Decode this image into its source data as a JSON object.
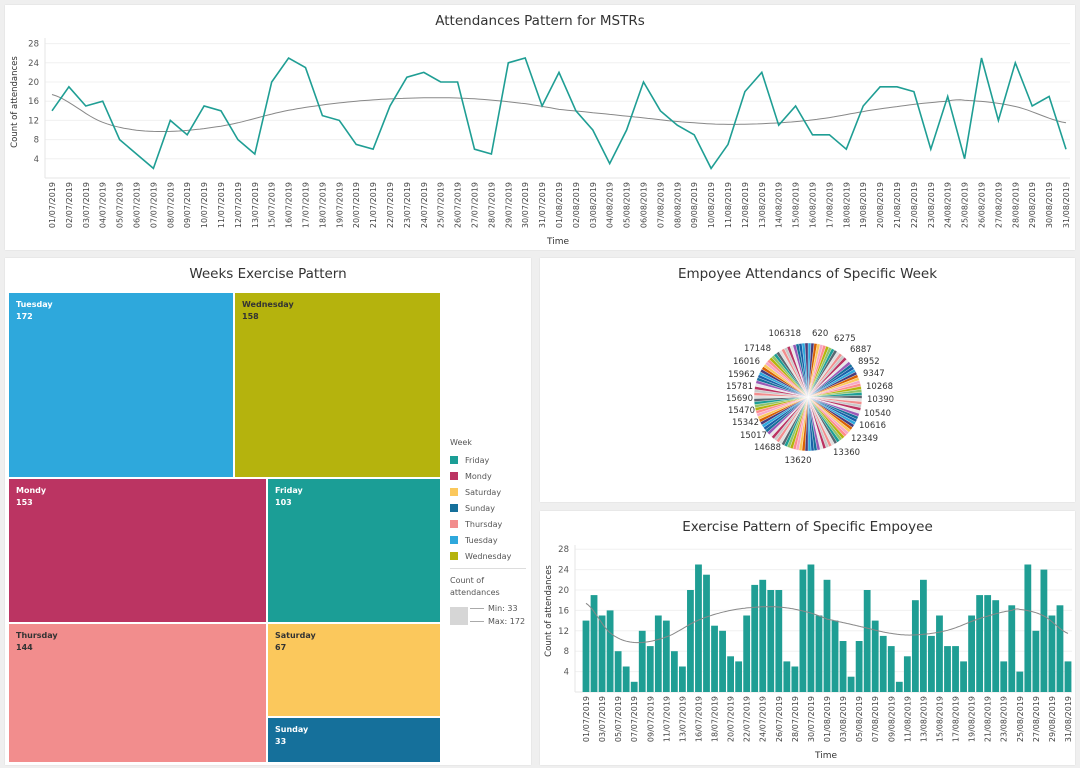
{
  "line_panel": {
    "title": "Attendances Pattern for MSTRs"
  },
  "treemap_panel": {
    "title": "Weeks Exercise Pattern"
  },
  "pie_panel": {
    "title": "Empoyee Attendancs of Specific Week"
  },
  "bar_panel": {
    "title": "Exercise Pattern of Specific Empoyee"
  },
  "chart_data": [
    {
      "type": "line",
      "title": "Attendances Pattern for MSTRs",
      "xlabel": "Time",
      "ylabel": "Count of attendances",
      "yticks": [
        4,
        8,
        12,
        16,
        20,
        24,
        28
      ],
      "ylim": [
        0,
        29
      ],
      "grid": true,
      "color": "#1f9e94",
      "trend_color": "#888888",
      "x": [
        "01/07/2019",
        "02/07/2019",
        "03/07/2019",
        "04/07/2019",
        "05/07/2019",
        "06/07/2019",
        "07/07/2019",
        "08/07/2019",
        "09/07/2019",
        "10/07/2019",
        "11/07/2019",
        "12/07/2019",
        "13/07/2019",
        "15/07/2019",
        "16/07/2019",
        "17/07/2019",
        "18/07/2019",
        "19/07/2019",
        "20/07/2019",
        "21/07/2019",
        "22/07/2019",
        "23/07/2019",
        "24/07/2019",
        "25/07/2019",
        "26/07/2019",
        "27/07/2019",
        "28/07/2019",
        "29/07/2019",
        "30/07/2019",
        "31/07/2019",
        "01/08/2019",
        "02/08/2019",
        "03/08/2019",
        "04/08/2019",
        "05/08/2019",
        "06/08/2019",
        "07/08/2019",
        "08/08/2019",
        "09/08/2019",
        "10/08/2019",
        "11/08/2019",
        "12/08/2019",
        "13/08/2019",
        "14/08/2019",
        "15/08/2019",
        "16/08/2019",
        "17/08/2019",
        "18/08/2019",
        "19/08/2019",
        "20/08/2019",
        "21/08/2019",
        "22/08/2019",
        "23/08/2019",
        "24/08/2019",
        "25/08/2019",
        "26/08/2019",
        "27/08/2019",
        "28/08/2019",
        "29/08/2019",
        "30/08/2019",
        "31/08/2019"
      ],
      "values": [
        14,
        19,
        15,
        16,
        8,
        5,
        2,
        12,
        9,
        15,
        14,
        8,
        5,
        20,
        25,
        23,
        13,
        12,
        7,
        6,
        15,
        21,
        22,
        20,
        20,
        6,
        5,
        24,
        25,
        15,
        22,
        14,
        10,
        3,
        10,
        20,
        14,
        11,
        9,
        2,
        7,
        18,
        22,
        11,
        15,
        9,
        9,
        6,
        15,
        19,
        19,
        18,
        6,
        17,
        4,
        25,
        12,
        24,
        15,
        17,
        6
      ],
      "trend": [
        {
          "x": "01/07/2019",
          "y": 17.4
        },
        {
          "x": "04/07/2019",
          "y": 11.6
        },
        {
          "x": "07/07/2019",
          "y": 9.7
        },
        {
          "x": "11/07/2019",
          "y": 10.8
        },
        {
          "x": "16/07/2019",
          "y": 14.1
        },
        {
          "x": "20/07/2019",
          "y": 16.0
        },
        {
          "x": "24/07/2019",
          "y": 16.7
        },
        {
          "x": "27/07/2019",
          "y": 16.5
        },
        {
          "x": "30/07/2019",
          "y": 15.5
        },
        {
          "x": "01/08/2019",
          "y": 14.3
        },
        {
          "x": "05/08/2019",
          "y": 12.9
        },
        {
          "x": "09/08/2019",
          "y": 11.5
        },
        {
          "x": "12/08/2019",
          "y": 11.2
        },
        {
          "x": "16/08/2019",
          "y": 12.1
        },
        {
          "x": "20/08/2019",
          "y": 14.4
        },
        {
          "x": "24/08/2019",
          "y": 16.0
        },
        {
          "x": "25/08/2019",
          "y": 16.2
        },
        {
          "x": "28/08/2019",
          "y": 14.9
        },
        {
          "x": "31/08/2019",
          "y": 11.5
        }
      ]
    },
    {
      "type": "treemap",
      "title": "Weeks Exercise Pattern",
      "legend_title": "Week",
      "size_legend_title": "Count of attendances",
      "size_min_label": "Min: 33",
      "size_max_label": "Max: 172",
      "legend_position": "right",
      "items": [
        {
          "label": "Tuesday",
          "value": 172,
          "color": "#2ea8dc"
        },
        {
          "label": "Wednesday",
          "value": 158,
          "color": "#b5b30d"
        },
        {
          "label": "Mondy",
          "value": 153,
          "color": "#bb3462"
        },
        {
          "label": "Friday",
          "value": 103,
          "color": "#1b9e96"
        },
        {
          "label": "Thursday",
          "value": 144,
          "color": "#f28d8d"
        },
        {
          "label": "Saturday",
          "value": 67,
          "color": "#fbc85c"
        },
        {
          "label": "Sunday",
          "value": 33,
          "color": "#15709b"
        }
      ],
      "legend": [
        "Friday",
        "Mondy",
        "Saturday",
        "Sunday",
        "Thursday",
        "Tuesday",
        "Wednesday"
      ]
    },
    {
      "type": "pie",
      "title": "Empoyee Attendancs of Specific Week",
      "labels": [
        "620",
        "6275",
        "6887",
        "8952",
        "9347",
        "10268",
        "10390",
        "10540",
        "10616",
        "12349",
        "13360",
        "13620",
        "14688",
        "15017",
        "15342",
        "15470",
        "15690",
        "15781",
        "15962",
        "16016",
        "17148",
        "106318"
      ]
    },
    {
      "type": "bar",
      "title": "Exercise Pattern of Specific Empoyee",
      "xlabel": "Time",
      "ylabel": "Count of attendances",
      "yticks": [
        4,
        8,
        12,
        16,
        20,
        24,
        28
      ],
      "ylim": [
        0,
        28
      ],
      "grid": true,
      "color": "#1f9e94",
      "same_data_as": "line"
    }
  ]
}
